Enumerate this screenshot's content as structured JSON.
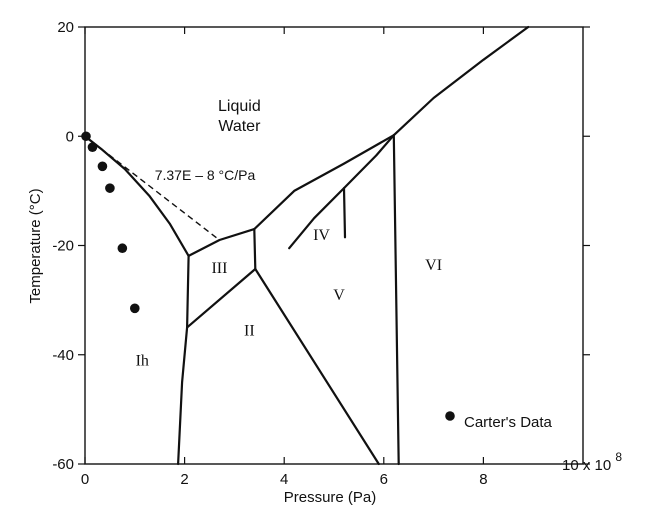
{
  "chart_data": {
    "type": "scatter",
    "xlabel": "Pressure (Pa)",
    "ylabel": "Temperature (°C)",
    "x_multiplier_label": "10 x 10",
    "x_multiplier_exponent": "8",
    "xlim": [
      0,
      10
    ],
    "ylim": [
      -60,
      20
    ],
    "x_ticks": [
      0,
      2,
      4,
      6,
      8
    ],
    "y_ticks": [
      20,
      0,
      -20,
      -40,
      -60
    ],
    "phase_regions": [
      {
        "label": "Liquid",
        "x": 3.1,
        "y": 4.6,
        "font": "sans"
      },
      {
        "label": "Water",
        "x": 3.1,
        "y": 1.0,
        "font": "sans"
      },
      {
        "label": "Ih",
        "x": 1.15,
        "y": -42.0,
        "font": "serif"
      },
      {
        "label": "III",
        "x": 2.7,
        "y": -25.0,
        "font": "serif"
      },
      {
        "label": "II",
        "x": 3.3,
        "y": -36.5,
        "font": "serif"
      },
      {
        "label": "IV",
        "x": 4.75,
        "y": -19.0,
        "font": "serif"
      },
      {
        "label": "V",
        "x": 5.1,
        "y": -30.0,
        "font": "serif"
      },
      {
        "label": "VI",
        "x": 7.0,
        "y": -24.5,
        "font": "serif"
      }
    ],
    "slope_annotation": {
      "text": "7.37E – 8 °C/Pa",
      "x": 1.4,
      "y": -8.0
    },
    "boundaries": [
      [
        [
          0.0,
          0.0
        ],
        [
          0.35,
          -2.5
        ],
        [
          0.8,
          -6.0
        ],
        [
          1.3,
          -11.0
        ],
        [
          1.7,
          -16.0
        ],
        [
          2.08,
          -21.9
        ]
      ],
      [
        [
          2.08,
          -21.9
        ],
        [
          2.05,
          -35.0
        ]
      ],
      [
        [
          2.08,
          -21.9
        ],
        [
          2.7,
          -19.0
        ],
        [
          3.4,
          -17.0
        ]
      ],
      [
        [
          3.4,
          -17.0
        ],
        [
          3.42,
          -24.3
        ]
      ],
      [
        [
          2.05,
          -35.0
        ],
        [
          3.42,
          -24.3
        ]
      ],
      [
        [
          2.05,
          -35.0
        ],
        [
          1.95,
          -45.0
        ],
        [
          1.87,
          -60.0
        ]
      ],
      [
        [
          3.42,
          -24.3
        ],
        [
          5.9,
          -60.0
        ]
      ],
      [
        [
          3.4,
          -17.0
        ],
        [
          4.2,
          -10.0
        ],
        [
          5.2,
          -5.0
        ],
        [
          6.2,
          0.2
        ]
      ],
      [
        [
          6.2,
          0.2
        ],
        [
          7.0,
          7.0
        ],
        [
          8.0,
          14.0
        ],
        [
          8.9,
          20.0
        ]
      ],
      [
        [
          6.2,
          0.2
        ],
        [
          6.3,
          -60.0
        ]
      ],
      [
        [
          4.1,
          -20.5
        ],
        [
          4.6,
          -15.0
        ],
        [
          5.2,
          -9.5
        ],
        [
          5.85,
          -3.5
        ],
        [
          6.2,
          0.2
        ]
      ],
      [
        [
          5.2,
          -9.5
        ],
        [
          5.22,
          -18.5
        ]
      ]
    ],
    "dashed_line": [
      [
        0.0,
        0.0
      ],
      [
        2.7,
        -19.0
      ]
    ],
    "series": [
      {
        "name": "Carter's Data",
        "points": [
          {
            "x": 0.02,
            "y": 0.0
          },
          {
            "x": 0.15,
            "y": -2.0
          },
          {
            "x": 0.35,
            "y": -5.5
          },
          {
            "x": 0.5,
            "y": -9.5
          },
          {
            "x": 0.75,
            "y": -20.5
          },
          {
            "x": 1.0,
            "y": -31.5
          }
        ]
      }
    ],
    "legend_position": "bottom-right",
    "grid": false
  }
}
